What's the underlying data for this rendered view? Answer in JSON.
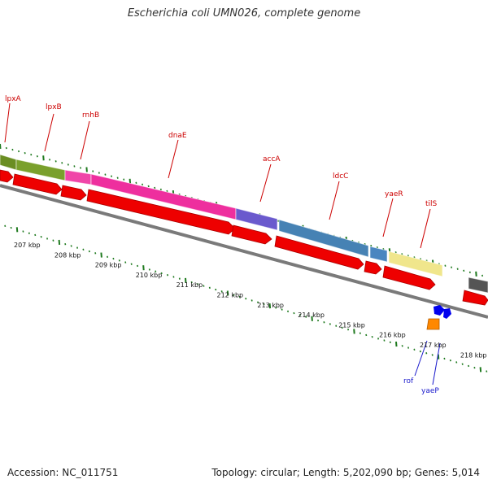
{
  "title": "Escherichia coli UMN026, complete genome",
  "footer": {
    "accession": "Accession: NC_011751",
    "topology": "Topology: circular; Length: 5,202,090 bp; Genes: 5,014"
  },
  "colors": {
    "backbone": "#7a7a7a",
    "tick": "#1f7a1f",
    "gene_label": "#cc0000",
    "rna_label": "#1a1acc",
    "arrow_red": "#ee0000",
    "lpxA": "#6b8e23",
    "lpxB": "#7aa02c",
    "rnhB": "#f046a8",
    "dnaE": "#ee2f9e",
    "accA": "#6a5acd",
    "ldcC": "#4682b4",
    "yaeR": "#4a86c0",
    "tilS": "#f0e68c",
    "next": "#555555",
    "rna_blue": "#0000ee",
    "rna_orange": "#ff8800"
  },
  "genes": [
    {
      "name": "lpxA",
      "color_key": "lpxA"
    },
    {
      "name": "lpxB",
      "color_key": "lpxB"
    },
    {
      "name": "rnhB",
      "color_key": "rnhB"
    },
    {
      "name": "dnaE",
      "color_key": "dnaE"
    },
    {
      "name": "accA",
      "color_key": "accA"
    },
    {
      "name": "ldcC",
      "color_key": "ldcC"
    },
    {
      "name": "yaeR",
      "color_key": "yaeR"
    },
    {
      "name": "tilS",
      "color_key": "tilS"
    }
  ],
  "rna_features": [
    {
      "name": "rof"
    },
    {
      "name": "yaeP"
    }
  ],
  "kbp_labels": [
    "207 kbp",
    "208 kbp",
    "209 kbp",
    "210 kbp",
    "211 kbp",
    "212 kbp",
    "213 kbp",
    "214 kbp",
    "215 kbp",
    "216 kbp",
    "217 kbp",
    "218 kbp"
  ]
}
